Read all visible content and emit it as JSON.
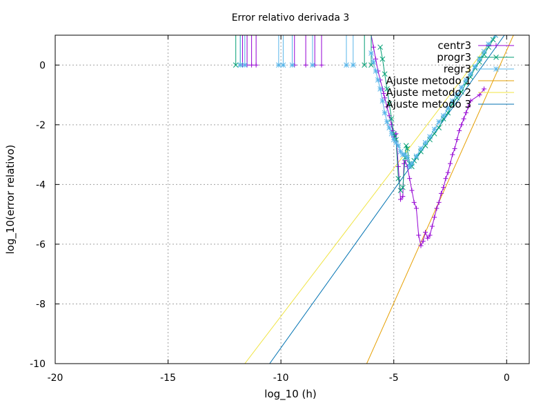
{
  "chart_data": {
    "type": "line",
    "title": "Error relativo derivada 3",
    "xlabel": "log_10 (h)",
    "ylabel": "log_10(error relativo)",
    "xlim": [
      -20,
      1
    ],
    "ylim": [
      -10,
      1
    ],
    "xticks": [
      -20,
      -15,
      -10,
      -5,
      0
    ],
    "yticks": [
      -10,
      -8,
      -6,
      -4,
      -2,
      0
    ],
    "grid": true,
    "legend_position": "top-right",
    "series": [
      {
        "name": "centr3",
        "color": "#9400d3",
        "marker": "plus",
        "spikes_x": [
          -11.7,
          -11.5,
          -11.3,
          -11.1,
          -9.4,
          -8.9,
          -8.5,
          -8.2
        ],
        "points": [
          [
            -6.0,
            1.0
          ],
          [
            -5.9,
            0.6
          ],
          [
            -5.8,
            0.2
          ],
          [
            -5.7,
            -0.2
          ],
          [
            -5.6,
            -0.5
          ],
          [
            -5.5,
            -0.8
          ],
          [
            -5.45,
            -0.95
          ],
          [
            -5.4,
            -1.1
          ],
          [
            -5.3,
            -1.4
          ],
          [
            -5.2,
            -1.7
          ],
          [
            -5.1,
            -2.0
          ],
          [
            -5.05,
            -2.2
          ],
          [
            -5.0,
            -2.4
          ],
          [
            -4.9,
            -2.3
          ],
          [
            -4.8,
            -3.4
          ],
          [
            -4.7,
            -4.5
          ],
          [
            -4.6,
            -4.4
          ],
          [
            -4.55,
            -3.3
          ],
          [
            -4.5,
            -3.2
          ],
          [
            -4.4,
            -3.4
          ],
          [
            -4.3,
            -3.8
          ],
          [
            -4.2,
            -4.2
          ],
          [
            -4.1,
            -4.6
          ],
          [
            -4.0,
            -4.8
          ],
          [
            -3.9,
            -5.7
          ],
          [
            -3.8,
            -6.05
          ],
          [
            -3.7,
            -5.9
          ],
          [
            -3.6,
            -5.6
          ],
          [
            -3.5,
            -5.8
          ],
          [
            -3.4,
            -5.7
          ],
          [
            -3.3,
            -5.4
          ],
          [
            -3.2,
            -5.1
          ],
          [
            -3.1,
            -4.8
          ],
          [
            -3.0,
            -4.6
          ],
          [
            -2.9,
            -4.3
          ],
          [
            -2.8,
            -4.1
          ],
          [
            -2.7,
            -3.8
          ],
          [
            -2.6,
            -3.6
          ],
          [
            -2.5,
            -3.3
          ],
          [
            -2.4,
            -3.0
          ],
          [
            -2.3,
            -2.8
          ],
          [
            -2.2,
            -2.5
          ],
          [
            -2.1,
            -2.2
          ],
          [
            -2.0,
            -2.0
          ],
          [
            -1.9,
            -1.8
          ],
          [
            -1.8,
            -1.6
          ],
          [
            -1.7,
            -1.4
          ],
          [
            -1.6,
            -1.2
          ],
          [
            -1.2,
            -1.0
          ],
          [
            -1.0,
            -0.8
          ]
        ]
      },
      {
        "name": "progr3",
        "color": "#009e73",
        "marker": "cross",
        "spikes_x": [
          -12.0,
          -11.8,
          -6.3,
          -6.0
        ],
        "points": [
          [
            -5.6,
            0.6
          ],
          [
            -5.5,
            0.2
          ],
          [
            -5.4,
            -0.3
          ],
          [
            -5.3,
            -0.8
          ],
          [
            -5.2,
            -1.3
          ],
          [
            -5.1,
            -1.8
          ],
          [
            -5.0,
            -2.3
          ],
          [
            -4.95,
            -2.4
          ],
          [
            -4.9,
            -2.5
          ],
          [
            -4.8,
            -3.8
          ],
          [
            -4.7,
            -4.2
          ],
          [
            -4.6,
            -4.1
          ],
          [
            -4.5,
            -3.1
          ],
          [
            -4.45,
            -2.7
          ],
          [
            -4.4,
            -2.8
          ],
          [
            -4.3,
            -3.3
          ],
          [
            -4.2,
            -3.4
          ],
          [
            -4.1,
            -3.2
          ],
          [
            -4.0,
            -3.1
          ],
          [
            -3.8,
            -2.9
          ],
          [
            -3.6,
            -2.7
          ],
          [
            -3.4,
            -2.5
          ],
          [
            -3.2,
            -2.3
          ],
          [
            -3.0,
            -2.1
          ],
          [
            -2.8,
            -1.8
          ],
          [
            -2.6,
            -1.6
          ],
          [
            -2.4,
            -1.3
          ],
          [
            -2.2,
            -1.1
          ],
          [
            -2.0,
            -0.9
          ],
          [
            -1.8,
            -0.6
          ],
          [
            -1.6,
            -0.4
          ],
          [
            -1.4,
            -0.1
          ],
          [
            -1.2,
            0.1
          ],
          [
            -1.0,
            0.35
          ],
          [
            -0.8,
            0.6
          ],
          [
            -0.6,
            0.85
          ],
          [
            -0.5,
            1.0
          ]
        ]
      },
      {
        "name": "regr3",
        "color": "#56b4e9",
        "marker": "star",
        "spikes_x": [
          -11.8,
          -11.6,
          -10.1,
          -9.9,
          -9.5,
          -8.6,
          -7.1,
          -6.8
        ],
        "points": [
          [
            -6.0,
            0.4
          ],
          [
            -5.9,
            0.1
          ],
          [
            -5.8,
            -0.2
          ],
          [
            -5.7,
            -0.5
          ],
          [
            -5.6,
            -0.8
          ],
          [
            -5.5,
            -1.2
          ],
          [
            -5.4,
            -1.6
          ],
          [
            -5.3,
            -1.9
          ],
          [
            -5.2,
            -2.1
          ],
          [
            -5.1,
            -2.3
          ],
          [
            -5.0,
            -2.5
          ],
          [
            -4.9,
            -2.6
          ],
          [
            -4.8,
            -2.7
          ],
          [
            -4.7,
            -2.9
          ],
          [
            -4.6,
            -3.0
          ],
          [
            -4.5,
            -3.0
          ],
          [
            -4.4,
            -3.1
          ],
          [
            -4.3,
            -3.4
          ],
          [
            -4.2,
            -3.3
          ],
          [
            -4.0,
            -3.05
          ],
          [
            -3.8,
            -2.8
          ],
          [
            -3.6,
            -2.6
          ],
          [
            -3.4,
            -2.4
          ],
          [
            -3.2,
            -2.15
          ],
          [
            -3.0,
            -1.9
          ],
          [
            -2.8,
            -1.7
          ],
          [
            -2.6,
            -1.45
          ],
          [
            -2.4,
            -1.2
          ],
          [
            -2.2,
            -1.0
          ],
          [
            -2.0,
            -0.75
          ],
          [
            -1.8,
            -0.5
          ],
          [
            -1.6,
            -0.3
          ],
          [
            -1.4,
            -0.05
          ],
          [
            -1.2,
            0.2
          ],
          [
            -1.0,
            0.45
          ],
          [
            -0.8,
            0.7
          ],
          [
            -0.5,
            1.0
          ]
        ]
      },
      {
        "name": "Ajuste metodo 1",
        "color": "#e69f00",
        "marker": "none",
        "points": [
          [
            -6.2,
            -10.0
          ],
          [
            0.3,
            1.0
          ]
        ]
      },
      {
        "name": "Ajuste metodo 2",
        "color": "#f0e442",
        "marker": "none",
        "points": [
          [
            -11.6,
            -10.0
          ],
          [
            -0.5,
            1.0
          ]
        ]
      },
      {
        "name": "Ajuste metodo 3",
        "color": "#0072b2",
        "marker": "none",
        "points": [
          [
            -10.5,
            -10.0
          ],
          [
            -0.1,
            1.0
          ]
        ]
      }
    ]
  }
}
